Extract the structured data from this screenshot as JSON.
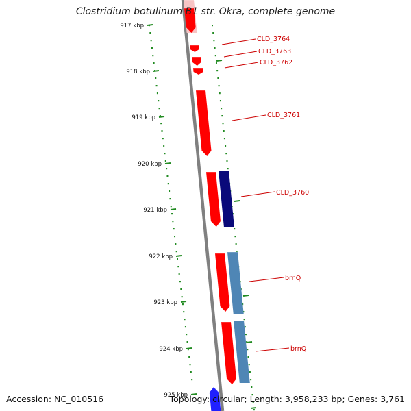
{
  "title": "Clostridium botulinum B1 str. Okra, complete genome",
  "accession": "Accession: NC_010516",
  "summary": "Topology: circular; Length: 3,958,233 bp; Genes: 3,761",
  "colors": {
    "backbone": "#808080",
    "forward_gene": "#ff0000",
    "forward_gene_faded": "#f7c4c4",
    "reverse_gene_dark": "#0a0a7a",
    "reverse_gene_steel": "#4f86b5",
    "reverse_gene_light": "#2020ff",
    "label": "#cc0000",
    "ticks": "#228b22"
  },
  "scale": {
    "ticks": [
      "917 kbp",
      "918 kbp",
      "919 kbp",
      "920 kbp",
      "921 kbp",
      "922 kbp",
      "923 kbp",
      "924 kbp",
      "925 kbp"
    ]
  },
  "gene_labels": [
    "CLD_3764",
    "CLD_3763",
    "CLD_3762",
    "CLD_3761",
    "CLD_3760",
    "brnQ",
    "brnQ"
  ]
}
